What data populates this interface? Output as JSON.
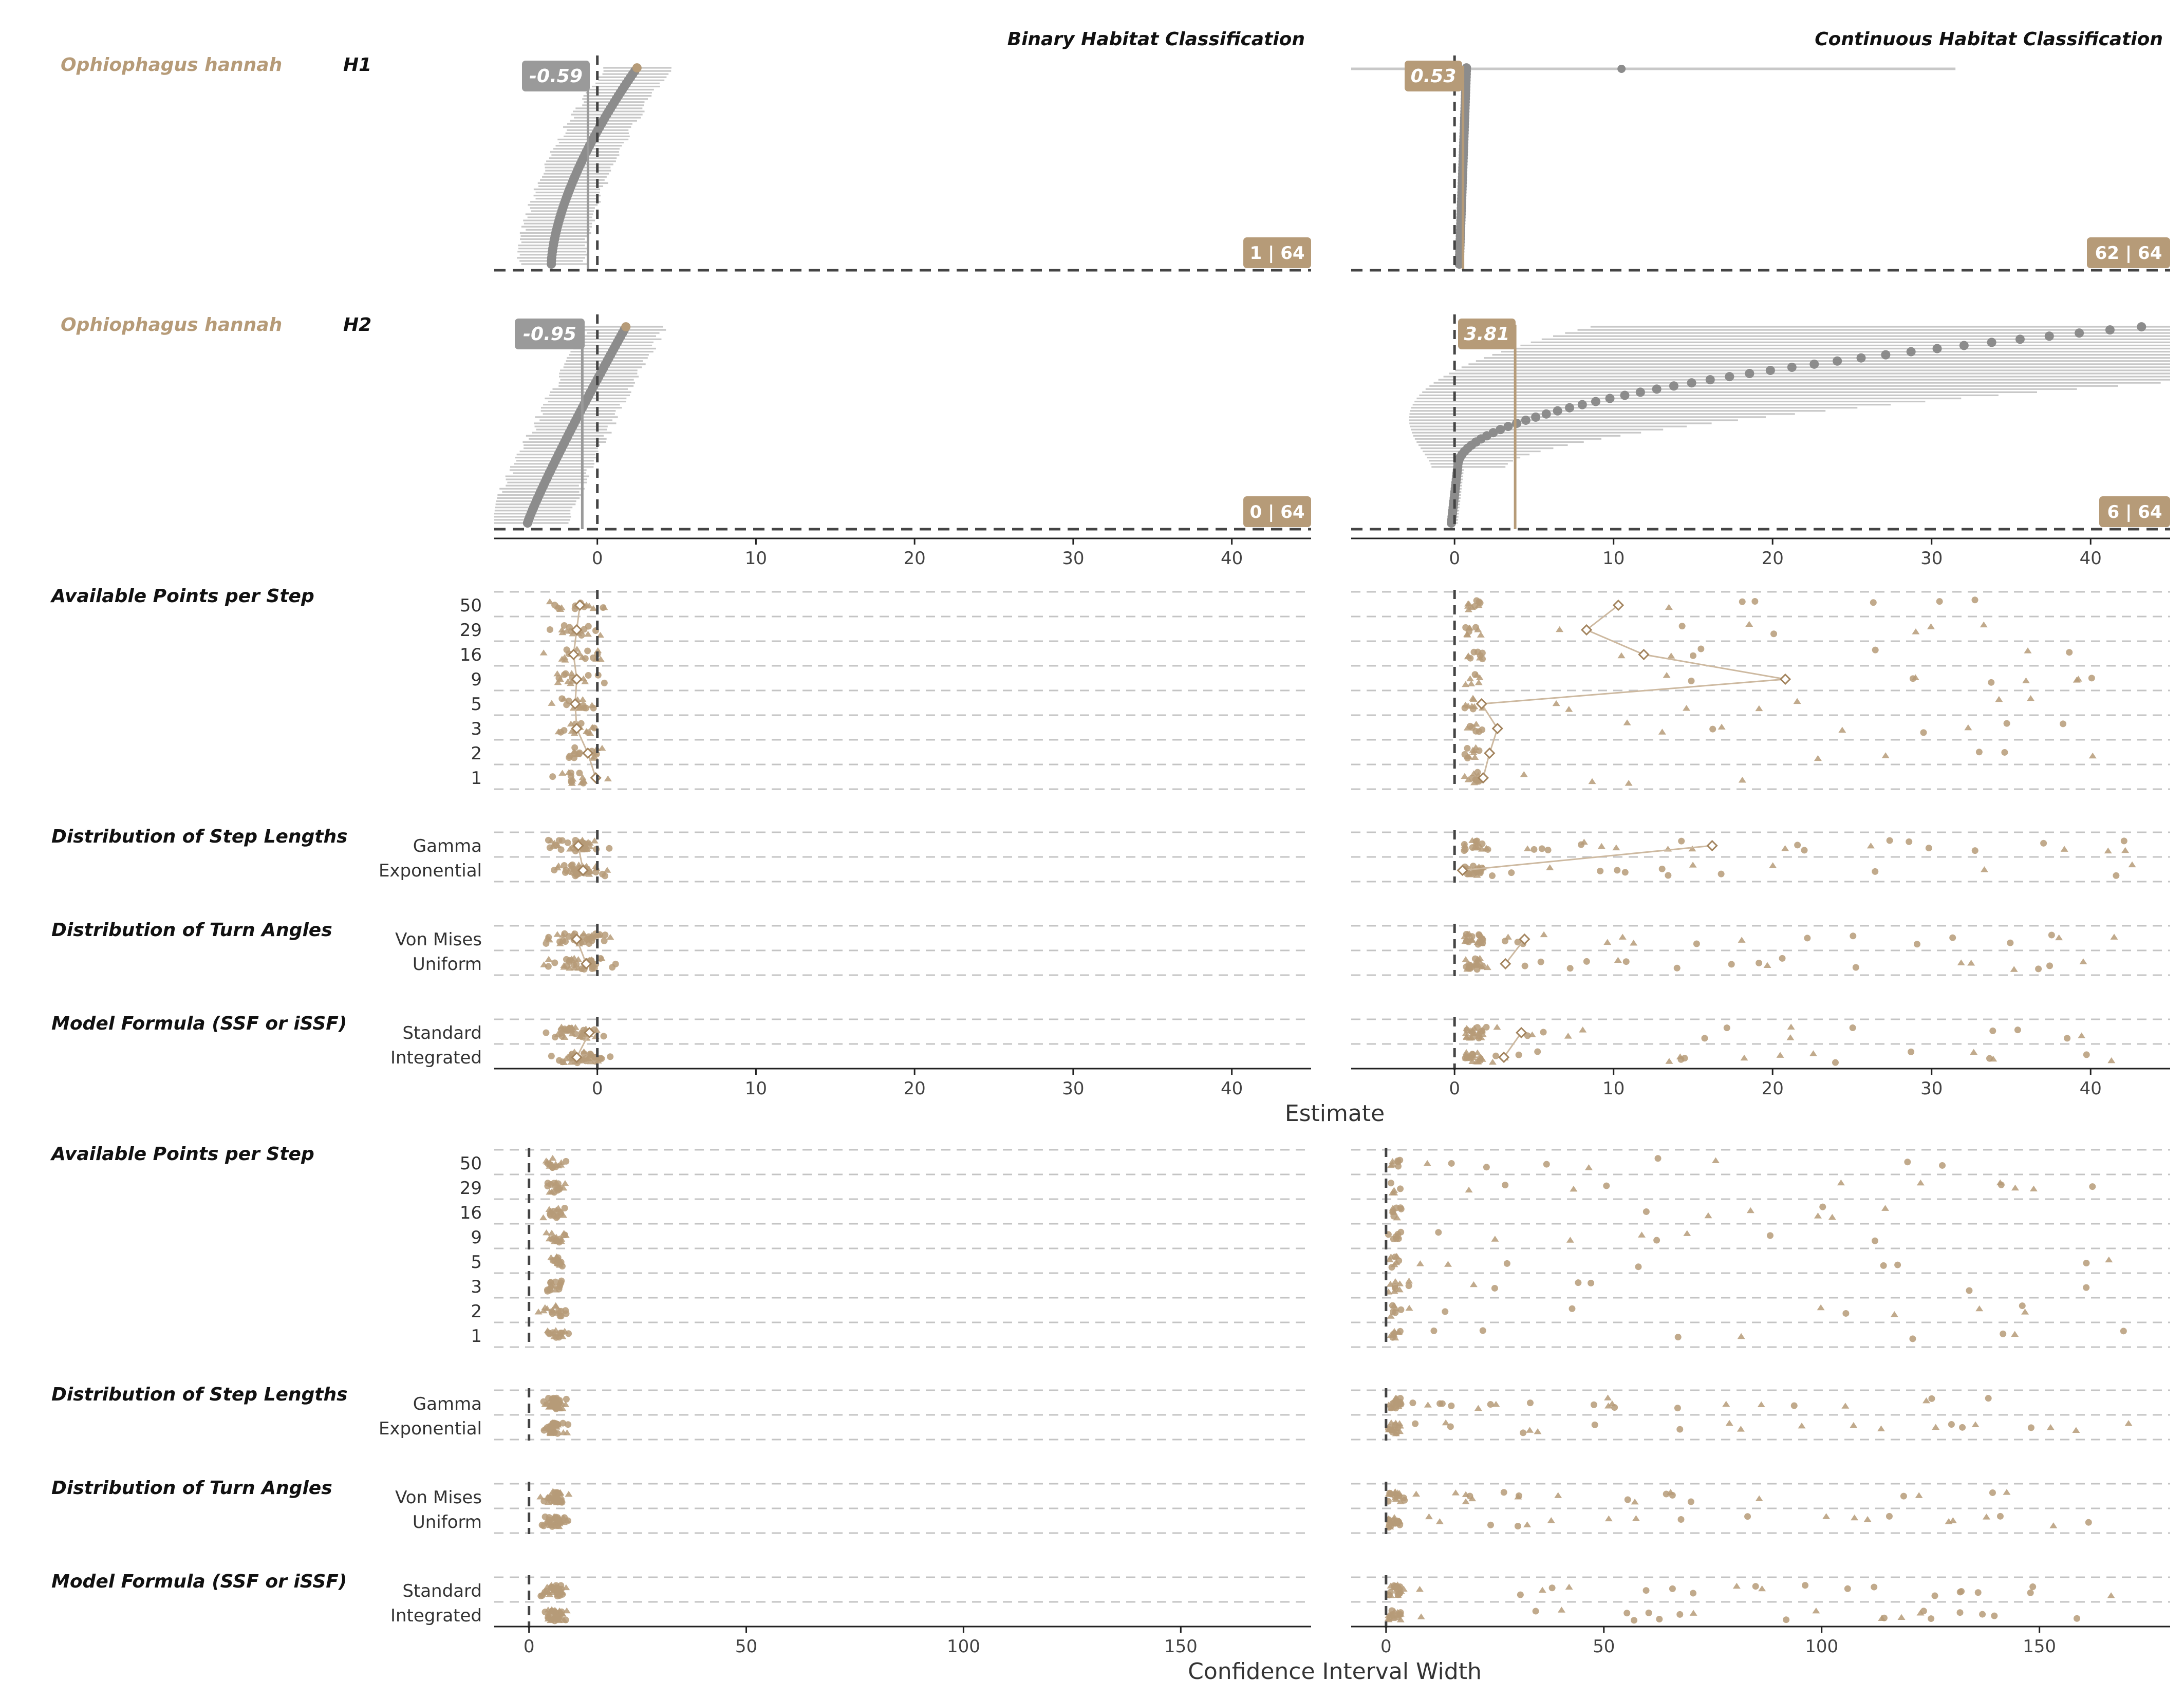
{
  "colors": {
    "accent": "#b69b78",
    "accent_light": "#cdb9a0",
    "grey_point": "#8c8c8c",
    "grey_bar": "#c8c8c8",
    "grey_badge": "#9a9a9a",
    "dashed": "#444444",
    "grid": "#c4c4c4"
  },
  "chart_data": {
    "type": "scatter",
    "species": "Ophiophagus hannah",
    "columns": [
      {
        "key": "binary",
        "title": "Binary Habitat Classification"
      },
      {
        "key": "continuous",
        "title": "Continuous Habitat Classification"
      }
    ],
    "hypothesis_panels": [
      {
        "hypothesis": "H1",
        "binary": {
          "median_label": "-0.59",
          "median": -0.59,
          "significant_label": "1 | 64"
        },
        "continuous": {
          "median_label": "0.53",
          "median": 0.53,
          "significant_label": "62 | 64"
        }
      },
      {
        "hypothesis": "H2",
        "binary": {
          "median_label": "-0.95",
          "median": -0.95,
          "significant_label": "0 | 64"
        },
        "continuous": {
          "median_label": "3.81",
          "median": 3.81,
          "significant_label": "6 | 64"
        }
      }
    ],
    "estimate_axis": {
      "label": "Estimate",
      "binary": {
        "xlim": [
          -6.5,
          45
        ],
        "ticks": [
          "0",
          "10",
          "20",
          "30",
          "40"
        ]
      },
      "continuous": {
        "xlim": [
          -6.5,
          45
        ],
        "ticks": [
          "0",
          "10",
          "20",
          "30",
          "40"
        ]
      }
    },
    "ci_axis": {
      "label": "Confidence Interval Width",
      "binary": {
        "xlim": [
          -8,
          180
        ],
        "ticks": [
          "0",
          "50",
          "100",
          "150"
        ]
      },
      "continuous": {
        "xlim": [
          -8,
          180
        ],
        "ticks": [
          "0",
          "50",
          "100",
          "150"
        ]
      }
    },
    "factor_sections": [
      {
        "name": "Available Points per Step",
        "levels": [
          "50",
          "29",
          "16",
          "9",
          "5",
          "3",
          "2",
          "1"
        ]
      },
      {
        "name": "Distribution of Step Lengths",
        "levels": [
          "Gamma",
          "Exponential"
        ]
      },
      {
        "name": "Distribution of Turn Angles",
        "levels": [
          "Von Mises",
          "Uniform"
        ]
      },
      {
        "name": "Model Formula (SSF or iSSF)",
        "levels": [
          "Standard",
          "Integrated"
        ]
      }
    ],
    "estimate_means": {
      "binary": [
        [
          -1.1,
          -1.3,
          -1.5,
          -1.3,
          -1.4,
          -1.3,
          -0.6,
          -0.1
        ],
        [
          -1.2,
          -0.9
        ],
        [
          -1.3,
          -0.7
        ],
        [
          -0.5,
          -1.3
        ]
      ],
      "continuous": [
        [
          10.3,
          8.3,
          11.9,
          20.8,
          1.7,
          2.7,
          2.2,
          1.8
        ],
        [
          16.2,
          0.5
        ],
        [
          4.4,
          3.2
        ],
        [
          4.2,
          3.1
        ]
      ]
    }
  }
}
